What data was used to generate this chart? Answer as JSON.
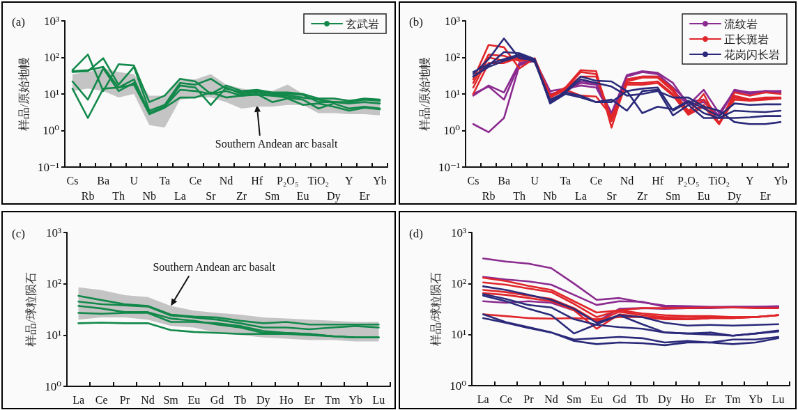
{
  "chart_data": [
    {
      "type": "line",
      "title": "(a)",
      "ylabel": "样品/原始地幔",
      "categories": [
        "Cs",
        "Rb",
        "Ba",
        "Th",
        "U",
        "Nb",
        "Ta",
        "La",
        "Ce",
        "Sr",
        "Nd",
        "Zr",
        "Hf",
        "Sm",
        "P₂O₅",
        "Eu",
        "TiO₂",
        "Dy",
        "Y",
        "Er",
        "Yb"
      ],
      "ylim": [
        0.1,
        1000
      ],
      "yticks": [
        {
          "value": 0.1,
          "label": "10⁻¹"
        },
        {
          "value": 1,
          "label": "10⁰"
        },
        {
          "value": 10,
          "label": "10¹"
        },
        {
          "value": 100,
          "label": "10²"
        },
        {
          "value": 1000,
          "label": "10³"
        }
      ],
      "log": "y",
      "legend": "top right",
      "marker": "none",
      "annotations": [
        {
          "text": "Southern Andean arc basalt",
          "x": "Hf",
          "y": 5
        }
      ],
      "series": [
        {
          "type": "area",
          "color": "#c4c4c4",
          "values": [
            null,
            null,
            null,
            null,
            null,
            null,
            null,
            null,
            null,
            null,
            null,
            null,
            null,
            null,
            null,
            null,
            null,
            null,
            null,
            null,
            null
          ],
          "lower": [
            12,
            14,
            12,
            8,
            10,
            1.4,
            1.2,
            7,
            8,
            8,
            6,
            4,
            4.5,
            4.5,
            5,
            5,
            3,
            3,
            2.8,
            2.8,
            2.6
          ],
          "upper": [
            35,
            40,
            50,
            40,
            35,
            9,
            9,
            25,
            25,
            35,
            18,
            14,
            12,
            12,
            18,
            10,
            8,
            8,
            7,
            7,
            7
          ]
        },
        {
          "name": "玄武岩",
          "color": "#12894a",
          "values": [
            45,
            120,
            12,
            65,
            60,
            6,
            9,
            26,
            22,
            10,
            17,
            12,
            13,
            11,
            11,
            10,
            7.5,
            7.5,
            6.5,
            7.5,
            7
          ]
        },
        {
          "color": "#12894a",
          "values": [
            40,
            42,
            95,
            18,
            55,
            3.5,
            5,
            20,
            18,
            26,
            14,
            11,
            12,
            10,
            10,
            9.5,
            6,
            6,
            6,
            7,
            6.5
          ]
        },
        {
          "color": "#12894a",
          "values": [
            42,
            45,
            55,
            15,
            25,
            3,
            4.5,
            17,
            15,
            5,
            15,
            10,
            11,
            9,
            8,
            7,
            4,
            5.5,
            4,
            4.5,
            4
          ]
        },
        {
          "color": "#12894a",
          "values": [
            22,
            7,
            50,
            12,
            20,
            3,
            4.5,
            13,
            12,
            10,
            12,
            9,
            10,
            6,
            7.5,
            5,
            5.5,
            4.5,
            3.5,
            4.2,
            3.8
          ]
        },
        {
          "color": "#12894a",
          "values": [
            14,
            2.2,
            14,
            15,
            18,
            2.8,
            4.2,
            8,
            8,
            11,
            8,
            9,
            9.5,
            9,
            9,
            8,
            7,
            6,
            5.5,
            6,
            5.5
          ]
        }
      ]
    },
    {
      "type": "line",
      "title": "(b)",
      "ylabel": "样品/原始地幔",
      "categories": [
        "Cs",
        "Rb",
        "Ba",
        "Th",
        "U",
        "Nb",
        "Ta",
        "La",
        "Ce",
        "Sr",
        "Nd",
        "Zr",
        "Hf",
        "Sm",
        "P₂O₅",
        "Eu",
        "TiO₂",
        "Dy",
        "Y",
        "Er",
        "Yb"
      ],
      "ylim": [
        0.1,
        1000
      ],
      "yticks": [
        {
          "value": 0.1,
          "label": "10⁻¹"
        },
        {
          "value": 1,
          "label": "10⁰"
        },
        {
          "value": 10,
          "label": "10¹"
        },
        {
          "value": 100,
          "label": "10²"
        },
        {
          "value": 1000,
          "label": "10³"
        }
      ],
      "log": "y",
      "legend": "top right",
      "marker": "none",
      "series": [
        {
          "name": "流纹岩",
          "color": "#8b2a8f",
          "values": [
            1.5,
            0.9,
            2.2,
            60,
            90,
            10,
            12,
            20,
            18,
            3,
            33,
            42,
            38,
            20,
            5,
            13,
            3,
            12,
            10,
            12,
            12
          ]
        },
        {
          "color": "#8b2a8f",
          "values": [
            9,
            17,
            11,
            70,
            85,
            12,
            14,
            17,
            15,
            2.5,
            30,
            40,
            35,
            15,
            6,
            7,
            2.5,
            13,
            11,
            12,
            11
          ]
        },
        {
          "color": "#8b2a8f",
          "values": [
            10,
            16,
            7,
            65,
            80,
            10,
            12,
            22,
            20,
            3,
            25,
            30,
            30,
            12,
            5,
            6,
            2.5,
            12,
            11,
            11,
            12
          ]
        },
        {
          "name": "正长斑岩",
          "color": "#e0262a",
          "values": [
            25,
            220,
            190,
            50,
            95,
            9,
            15,
            45,
            42,
            1.2,
            25,
            30,
            30,
            14,
            3,
            10,
            1.5,
            11,
            9,
            11,
            10
          ]
        },
        {
          "color": "#e0262a",
          "values": [
            20,
            120,
            110,
            80,
            90,
            8,
            14,
            40,
            35,
            2,
            22,
            28,
            28,
            12,
            3.5,
            7,
            1.6,
            9,
            7,
            8,
            8
          ]
        },
        {
          "color": "#e0262a",
          "values": [
            15,
            100,
            80,
            90,
            85,
            9,
            14,
            30,
            30,
            1.8,
            20,
            20,
            22,
            10,
            3,
            5,
            1.5,
            8,
            7,
            7.5,
            7.5
          ]
        },
        {
          "color": "#e0262a",
          "values": [
            10,
            70,
            70,
            100,
            75,
            8,
            13,
            9,
            8.5,
            2.5,
            18,
            18,
            20,
            9,
            2.7,
            4.5,
            1.5,
            7,
            6.5,
            7,
            7.5
          ]
        },
        {
          "name": "花岗闪长岩",
          "color": "#2b2a7a",
          "values": [
            35,
            90,
            330,
            95,
            85,
            5.5,
            10,
            8,
            6,
            6,
            12,
            14,
            15,
            3.5,
            6,
            3,
            2.2,
            2.2,
            2.3,
            2.5,
            2.5
          ]
        },
        {
          "color": "#2b2a7a",
          "values": [
            30,
            60,
            140,
            130,
            90,
            6,
            11,
            9,
            6,
            7,
            3.5,
            12,
            13,
            2.6,
            5,
            2.2,
            2.2,
            3.5,
            3.3,
            3.2,
            3.5
          ]
        },
        {
          "color": "#2b2a7a",
          "values": [
            40,
            65,
            90,
            120,
            80,
            6,
            12,
            30,
            23,
            22,
            12,
            3,
            4.5,
            3.8,
            6.5,
            4,
            2.5,
            5.5,
            5,
            5.2,
            5.2
          ]
        },
        {
          "color": "#2b2a7a",
          "values": [
            30,
            55,
            80,
            110,
            75,
            7,
            11,
            25,
            20,
            16,
            9,
            10,
            12,
            8,
            8,
            4.5,
            3.5,
            1.7,
            1.5,
            1.5,
            1.7
          ]
        }
      ]
    },
    {
      "type": "line",
      "title": "(c)",
      "ylabel": "样品/球粒陨石",
      "categories": [
        "La",
        "Ce",
        "Pr",
        "Nd",
        "Sm",
        "Eu",
        "Gd",
        "Tb",
        "Dy",
        "Ho",
        "Er",
        "Tm",
        "Yb",
        "Lu"
      ],
      "ylim": [
        1,
        1000
      ],
      "yticks": [
        {
          "value": 1,
          "label": "10⁰"
        },
        {
          "value": 10,
          "label": "10¹"
        },
        {
          "value": 100,
          "label": "10²"
        },
        {
          "value": 1000,
          "label": "10³"
        }
      ],
      "log": "y",
      "marker": "none",
      "annotations": [
        {
          "text": "Southern Andean arc basalt",
          "x": "Sm",
          "y": 37
        }
      ],
      "series": [
        {
          "type": "area",
          "color": "#c4c4c4",
          "values": [
            null,
            null,
            null,
            null,
            null,
            null,
            null,
            null,
            null,
            null,
            null,
            null,
            null,
            null
          ],
          "lower": [
            20,
            22,
            22,
            20,
            15,
            14,
            11,
            10,
            9,
            8.5,
            8,
            8,
            7.5,
            7.5
          ],
          "upper": [
            85,
            75,
            60,
            55,
            37,
            30,
            27,
            25,
            22,
            21,
            20,
            19,
            18,
            18
          ]
        },
        {
          "color": "#12894a",
          "values": [
            58,
            48,
            40,
            37,
            25,
            23,
            22,
            19,
            17,
            18,
            16,
            16,
            16,
            16
          ]
        },
        {
          "color": "#12894a",
          "values": [
            45,
            40,
            38,
            36,
            24,
            22,
            20,
            17,
            14,
            14,
            13,
            14,
            15,
            14
          ]
        },
        {
          "color": "#12894a",
          "values": [
            37,
            33,
            28,
            28,
            21,
            19,
            16,
            14,
            11,
            11,
            10.5,
            9.5,
            9,
            9
          ]
        },
        {
          "color": "#12894a",
          "values": [
            27,
            26,
            27,
            27,
            18,
            18,
            17,
            15,
            12,
            11,
            10.5,
            9.5,
            9,
            9
          ]
        },
        {
          "color": "#12894a",
          "values": [
            17,
            17.5,
            17,
            17,
            12.5,
            11.5,
            11,
            10.5,
            10.5,
            10.5,
            10,
            9.5,
            9,
            9
          ]
        }
      ]
    },
    {
      "type": "line",
      "title": "(d)",
      "ylabel": "样品/球粒陨石",
      "categories": [
        "La",
        "Ce",
        "Pr",
        "Nd",
        "Sm",
        "Eu",
        "Gd",
        "Tb",
        "Dy",
        "Ho",
        "Er",
        "Tm",
        "Yb",
        "Lu"
      ],
      "ylim": [
        1,
        1000
      ],
      "yticks": [
        {
          "value": 1,
          "label": "10⁰"
        },
        {
          "value": 10,
          "label": "10¹"
        },
        {
          "value": 100,
          "label": "10²"
        },
        {
          "value": 1000,
          "label": "10³"
        }
      ],
      "log": "y",
      "marker": "none",
      "series": [
        {
          "color": "#8b2a8f",
          "values": [
            310,
            270,
            245,
            200,
            100,
            48,
            52,
            43,
            37,
            36,
            35,
            35,
            35,
            36
          ]
        },
        {
          "color": "#8b2a8f",
          "values": [
            135,
            120,
            110,
            95,
            60,
            38,
            45,
            44,
            35,
            34,
            34,
            35,
            35,
            35
          ]
        },
        {
          "color": "#8b2a8f",
          "values": [
            45,
            42,
            45,
            42,
            30,
            18,
            32,
            33,
            32,
            33,
            33,
            34,
            34,
            35
          ]
        },
        {
          "color": "#e0262a",
          "values": [
            130,
            112,
            90,
            75,
            45,
            27,
            30,
            33,
            33,
            33,
            34,
            34,
            33,
            33
          ]
        },
        {
          "color": "#e0262a",
          "values": [
            105,
            95,
            80,
            68,
            40,
            22,
            30,
            26,
            24,
            23,
            23,
            22,
            22,
            24
          ]
        },
        {
          "color": "#e0262a",
          "values": [
            75,
            68,
            58,
            50,
            33,
            18,
            28,
            24,
            22,
            22,
            22,
            22,
            22,
            24
          ]
        },
        {
          "color": "#e0262a",
          "values": [
            65,
            60,
            52,
            45,
            30,
            13,
            25,
            22,
            20,
            20,
            21,
            21,
            22,
            24
          ]
        },
        {
          "color": "#e0262a",
          "values": [
            25,
            23,
            21,
            20.5,
            21,
            20,
            22,
            22,
            21,
            20,
            21,
            21,
            22,
            24
          ]
        },
        {
          "color": "#2b2a7a",
          "values": [
            88,
            75,
            60,
            48,
            32,
            17,
            24,
            16,
            11,
            10.5,
            10,
            9.5,
            10.5,
            12
          ]
        },
        {
          "color": "#2b2a7a",
          "values": [
            62,
            50,
            38,
            34,
            20,
            15.5,
            14,
            13,
            11,
            10.5,
            11,
            9.5,
            10.5,
            11.5
          ]
        },
        {
          "color": "#2b2a7a",
          "values": [
            58,
            45,
            32,
            24,
            10.5,
            16,
            24,
            22,
            17,
            15,
            15.5,
            15,
            15.5,
            16
          ]
        },
        {
          "color": "#2b2a7a",
          "values": [
            25,
            17.5,
            14,
            11,
            8,
            8.5,
            9,
            8.5,
            7,
            7.5,
            7,
            8,
            8,
            9
          ]
        },
        {
          "color": "#2b2a7a",
          "values": [
            21,
            17,
            13.5,
            11,
            7.5,
            6.5,
            7,
            6.8,
            6.2,
            7,
            7,
            6.5,
            7,
            8.5
          ]
        }
      ]
    }
  ]
}
